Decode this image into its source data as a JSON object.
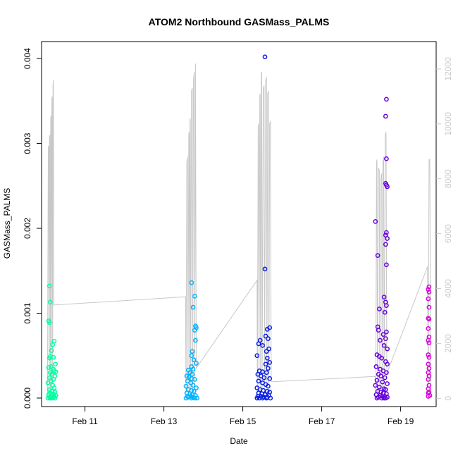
{
  "chart_data": {
    "type": "scatter",
    "title": "ATOM2 Northbound GASMass_PALMS",
    "xlabel": "Date",
    "ylabel": "GASMass_PALMS",
    "x_unit": "days (Feb 2017, fractional day-of-month)",
    "xlim": [
      9.9,
      19.9
    ],
    "ylim": [
      -0.0001,
      0.0042
    ],
    "y2lim": [
      -300,
      13000
    ],
    "x_ticks": [
      11,
      13,
      15,
      17,
      19
    ],
    "x_tick_labels": [
      "Feb 11",
      "Feb 13",
      "Feb 15",
      "Feb 17",
      "Feb 19"
    ],
    "y_ticks": [
      0.0,
      0.001,
      0.002,
      0.003,
      0.004
    ],
    "y_tick_labels": [
      "0.000",
      "0.001",
      "0.002",
      "0.003",
      "0.004"
    ],
    "y2_ticks": [
      0,
      2000,
      4000,
      6000,
      8000,
      10000,
      12000
    ],
    "y2_tick_labels": [
      "0",
      "2000",
      "4000",
      "6000",
      "8000",
      "10000",
      "12000"
    ],
    "grid": false,
    "colors": {
      "altitude_line": "#c8c8c8",
      "axis": "#000000",
      "right_axis": "#c8c8c8",
      "flight_colors": [
        "#00ffa0",
        "#00b3ff",
        "#0a1fe6",
        "#6600dd",
        "#dd00dd"
      ]
    },
    "series": [
      {
        "values": [
          [
            10.1,
            0.00132
          ],
          [
            10.12,
            0.00113
          ],
          [
            10.08,
            0.00091
          ],
          [
            10.1,
            0.00089
          ],
          [
            10.22,
            0.00067
          ],
          [
            10.18,
            0.00063
          ],
          [
            10.15,
            0.00056
          ],
          [
            10.12,
            0.00049
          ],
          [
            10.2,
            0.00048
          ],
          [
            10.1,
            0.00047
          ],
          [
            10.25,
            0.0004
          ],
          [
            10.14,
            0.00037
          ],
          [
            10.08,
            0.00036
          ],
          [
            10.2,
            0.00034
          ],
          [
            10.22,
            0.00032
          ],
          [
            10.26,
            0.00031
          ],
          [
            10.12,
            0.0003
          ],
          [
            10.16,
            0.00028
          ],
          [
            10.24,
            0.00026
          ],
          [
            10.1,
            0.00024
          ],
          [
            10.2,
            0.00022
          ],
          [
            10.14,
            0.0002
          ],
          [
            10.06,
            0.00018
          ],
          [
            10.18,
            0.00015
          ],
          [
            10.22,
            0.00012
          ],
          [
            10.1,
            0.0001
          ],
          [
            10.16,
            8e-05
          ],
          [
            10.24,
            7e-05
          ],
          [
            10.12,
            6e-05
          ],
          [
            10.2,
            5e-05
          ],
          [
            10.08,
            4e-05
          ],
          [
            10.18,
            3e-05
          ],
          [
            10.26,
            3e-05
          ],
          [
            10.14,
            2e-05
          ],
          [
            10.22,
            2e-05
          ],
          [
            10.1,
            1e-05
          ],
          [
            10.2,
            1e-05
          ],
          [
            10.16,
            0.0
          ],
          [
            10.24,
            0.0
          ],
          [
            10.12,
            0.0
          ],
          [
            10.06,
            0.0
          ]
        ]
      },
      {
        "values": [
          [
            13.7,
            0.00136
          ],
          [
            13.78,
            0.0012
          ],
          [
            13.74,
            0.00107
          ],
          [
            13.8,
            0.00085
          ],
          [
            13.82,
            0.00083
          ],
          [
            13.78,
            0.0008
          ],
          [
            13.8,
            0.00068
          ],
          [
            13.72,
            0.00055
          ],
          [
            13.7,
            0.0005
          ],
          [
            13.76,
            0.00045
          ],
          [
            13.82,
            0.00041
          ],
          [
            13.7,
            0.00037
          ],
          [
            13.74,
            0.00034
          ],
          [
            13.62,
            0.00033
          ],
          [
            13.66,
            0.0003
          ],
          [
            13.72,
            0.00028
          ],
          [
            13.58,
            0.00026
          ],
          [
            13.64,
            0.00025
          ],
          [
            13.7,
            0.00023
          ],
          [
            13.78,
            0.00022
          ],
          [
            13.6,
            0.0002
          ],
          [
            13.68,
            0.00018
          ],
          [
            13.74,
            0.00015
          ],
          [
            13.56,
            0.00014
          ],
          [
            13.82,
            0.00012
          ],
          [
            13.62,
            0.0001
          ],
          [
            13.7,
            9e-05
          ],
          [
            13.76,
            8e-05
          ],
          [
            13.58,
            6e-05
          ],
          [
            13.66,
            5e-05
          ],
          [
            13.72,
            4e-05
          ],
          [
            13.8,
            3e-05
          ],
          [
            13.6,
            2e-05
          ],
          [
            13.68,
            2e-05
          ],
          [
            13.74,
            1e-05
          ],
          [
            13.62,
            1e-05
          ],
          [
            13.78,
            0.0
          ],
          [
            13.56,
            0.0
          ],
          [
            13.7,
            0.0
          ],
          [
            13.84,
            0.0
          ]
        ]
      },
      {
        "values": [
          [
            15.56,
            0.00402
          ],
          [
            15.56,
            0.00152
          ],
          [
            15.68,
            0.00083
          ],
          [
            15.62,
            0.00081
          ],
          [
            15.58,
            0.00073
          ],
          [
            15.64,
            0.0007
          ],
          [
            15.44,
            0.00068
          ],
          [
            15.4,
            0.00064
          ],
          [
            15.5,
            0.00062
          ],
          [
            15.66,
            0.00058
          ],
          [
            15.6,
            0.00055
          ],
          [
            15.36,
            0.0005
          ],
          [
            15.62,
            0.00047
          ],
          [
            15.68,
            0.00042
          ],
          [
            15.58,
            0.0004
          ],
          [
            15.64,
            0.00035
          ],
          [
            15.42,
            0.00032
          ],
          [
            15.5,
            0.00031
          ],
          [
            15.6,
            0.0003
          ],
          [
            15.38,
            0.00028
          ],
          [
            15.46,
            0.00026
          ],
          [
            15.54,
            0.00024
          ],
          [
            15.68,
            0.00023
          ],
          [
            15.4,
            0.0002
          ],
          [
            15.5,
            0.00018
          ],
          [
            15.58,
            0.00016
          ],
          [
            15.64,
            0.00014
          ],
          [
            15.36,
            0.00012
          ],
          [
            15.44,
            0.0001
          ],
          [
            15.52,
            9e-05
          ],
          [
            15.62,
            8e-05
          ],
          [
            15.68,
            7e-05
          ],
          [
            15.4,
            6e-05
          ],
          [
            15.48,
            5e-05
          ],
          [
            15.56,
            4e-05
          ],
          [
            15.66,
            3e-05
          ],
          [
            15.38,
            2e-05
          ],
          [
            15.46,
            2e-05
          ],
          [
            15.54,
            1e-05
          ],
          [
            15.62,
            1e-05
          ],
          [
            15.7,
            0.0
          ],
          [
            15.42,
            0.0
          ],
          [
            15.5,
            0.0
          ],
          [
            15.6,
            0.0
          ],
          [
            15.36,
            0.0
          ]
        ]
      },
      {
        "values": [
          [
            18.64,
            0.00352
          ],
          [
            18.62,
            0.00332
          ],
          [
            18.64,
            0.00282
          ],
          [
            18.62,
            0.00253
          ],
          [
            18.64,
            0.00251
          ],
          [
            18.66,
            0.00249
          ],
          [
            18.36,
            0.00208
          ],
          [
            18.64,
            0.00195
          ],
          [
            18.62,
            0.00192
          ],
          [
            18.66,
            0.00188
          ],
          [
            18.62,
            0.00181
          ],
          [
            18.42,
            0.00168
          ],
          [
            18.64,
            0.00157
          ],
          [
            18.58,
            0.00119
          ],
          [
            18.62,
            0.00113
          ],
          [
            18.64,
            0.00109
          ],
          [
            18.46,
            0.00105
          ],
          [
            18.6,
            0.00101
          ],
          [
            18.42,
            0.00084
          ],
          [
            18.44,
            0.0008
          ],
          [
            18.64,
            0.00078
          ],
          [
            18.56,
            0.00075
          ],
          [
            18.62,
            0.0007
          ],
          [
            18.48,
            0.00068
          ],
          [
            18.58,
            0.00062
          ],
          [
            18.66,
            0.00058
          ],
          [
            18.4,
            0.00051
          ],
          [
            18.46,
            0.00049
          ],
          [
            18.52,
            0.00047
          ],
          [
            18.62,
            0.00043
          ],
          [
            18.66,
            0.0004
          ],
          [
            18.38,
            0.00037
          ],
          [
            18.48,
            0.00034
          ],
          [
            18.56,
            0.00032
          ],
          [
            18.64,
            0.0003
          ],
          [
            18.44,
            0.00028
          ],
          [
            18.5,
            0.00026
          ],
          [
            18.6,
            0.00024
          ],
          [
            18.4,
            0.00021
          ],
          [
            18.54,
            0.00019
          ],
          [
            18.66,
            0.00017
          ],
          [
            18.36,
            0.00015
          ],
          [
            18.46,
            0.00013
          ],
          [
            18.58,
            0.00011
          ],
          [
            18.62,
            0.0001
          ],
          [
            18.42,
            8e-05
          ],
          [
            18.5,
            7e-05
          ],
          [
            18.56,
            6e-05
          ],
          [
            18.64,
            5e-05
          ],
          [
            18.38,
            4e-05
          ],
          [
            18.48,
            3e-05
          ],
          [
            18.54,
            2e-05
          ],
          [
            18.6,
            2e-05
          ],
          [
            18.66,
            1e-05
          ],
          [
            18.44,
            1e-05
          ],
          [
            18.52,
            0.0
          ],
          [
            18.58,
            0.0
          ],
          [
            18.4,
            0.0
          ],
          [
            18.62,
            0.0
          ]
        ]
      },
      {
        "values": [
          [
            19.72,
            0.00131
          ],
          [
            19.7,
            0.00128
          ],
          [
            19.72,
            0.00125
          ],
          [
            19.7,
            0.00117
          ],
          [
            19.72,
            0.00107
          ],
          [
            19.7,
            0.00094
          ],
          [
            19.72,
            0.00093
          ],
          [
            19.7,
            0.00082
          ],
          [
            19.72,
            0.00072
          ],
          [
            19.7,
            0.00068
          ],
          [
            19.72,
            0.00065
          ],
          [
            19.7,
            0.00051
          ],
          [
            19.72,
            0.00048
          ],
          [
            19.7,
            0.0004
          ],
          [
            19.72,
            0.00035
          ],
          [
            19.7,
            0.0003
          ],
          [
            19.72,
            0.00026
          ],
          [
            19.7,
            0.00022
          ],
          [
            19.72,
            0.00015
          ],
          [
            19.7,
            0.00011
          ],
          [
            19.72,
            7e-05
          ],
          [
            19.7,
            6e-05
          ],
          [
            19.74,
            3e-05
          ],
          [
            19.7,
            2e-05
          ]
        ]
      }
    ],
    "altitude_line": {
      "y_axis": "right",
      "points": [
        [
          10.05,
          0
        ],
        [
          10.07,
          9200
        ],
        [
          10.08,
          9100
        ],
        [
          10.09,
          200
        ],
        [
          10.1,
          9500
        ],
        [
          10.11,
          9600
        ],
        [
          10.12,
          300
        ],
        [
          10.13,
          10200
        ],
        [
          10.14,
          10300
        ],
        [
          10.15,
          400
        ],
        [
          10.16,
          10900
        ],
        [
          10.17,
          11000
        ],
        [
          10.18,
          500
        ],
        [
          10.19,
          11400
        ],
        [
          10.2,
          11600
        ],
        [
          10.21,
          3400
        ],
        [
          13.55,
          3700
        ],
        [
          13.56,
          0
        ],
        [
          13.58,
          8600
        ],
        [
          13.6,
          8800
        ],
        [
          13.61,
          200
        ],
        [
          13.63,
          9600
        ],
        [
          13.64,
          9700
        ],
        [
          13.65,
          300
        ],
        [
          13.66,
          10100
        ],
        [
          13.67,
          10200
        ],
        [
          13.68,
          300
        ],
        [
          13.7,
          11200
        ],
        [
          13.72,
          11300
        ],
        [
          13.73,
          400
        ],
        [
          13.75,
          11600
        ],
        [
          13.77,
          11900
        ],
        [
          13.78,
          500
        ],
        [
          13.8,
          12200
        ],
        [
          13.82,
          1100
        ],
        [
          15.36,
          4300
        ],
        [
          15.37,
          0
        ],
        [
          15.39,
          9900
        ],
        [
          15.4,
          10000
        ],
        [
          15.41,
          200
        ],
        [
          15.43,
          11000
        ],
        [
          15.44,
          11100
        ],
        [
          15.45,
          300
        ],
        [
          15.47,
          11800
        ],
        [
          15.48,
          11900
        ],
        [
          15.49,
          400
        ],
        [
          15.52,
          11300
        ],
        [
          15.54,
          11400
        ],
        [
          15.55,
          500
        ],
        [
          15.58,
          11600
        ],
        [
          15.6,
          11700
        ],
        [
          15.61,
          400
        ],
        [
          15.63,
          11100
        ],
        [
          15.65,
          11200
        ],
        [
          15.66,
          500
        ],
        [
          15.68,
          10000
        ],
        [
          15.7,
          10100
        ],
        [
          15.72,
          600
        ],
        [
          18.36,
          800
        ],
        [
          18.37,
          0
        ],
        [
          18.39,
          8600
        ],
        [
          18.4,
          8700
        ],
        [
          18.41,
          200
        ],
        [
          18.44,
          8400
        ],
        [
          18.46,
          8300
        ],
        [
          18.47,
          300
        ],
        [
          18.5,
          8000
        ],
        [
          18.52,
          8200
        ],
        [
          18.53,
          200
        ],
        [
          18.55,
          8600
        ],
        [
          18.57,
          8800
        ],
        [
          18.58,
          300
        ],
        [
          18.61,
          9600
        ],
        [
          18.63,
          9700
        ],
        [
          18.65,
          900
        ],
        [
          19.68,
          4800
        ],
        [
          19.7,
          0
        ],
        [
          19.72,
          8700
        ],
        [
          19.74,
          8700
        ],
        [
          19.76,
          300
        ]
      ]
    }
  }
}
